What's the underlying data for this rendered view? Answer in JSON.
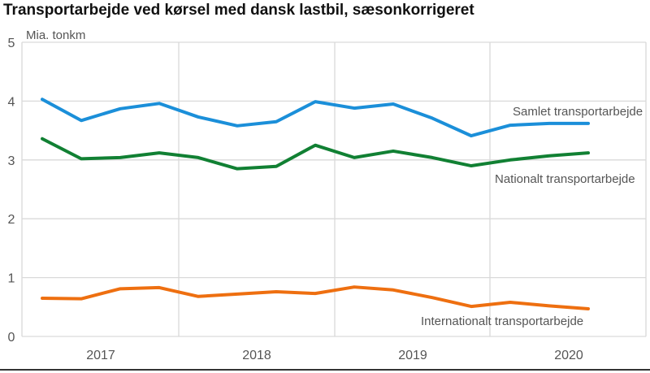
{
  "chart_data": {
    "type": "line",
    "title": "Transportarbejde ved kørsel med dansk lastbil, sæsonkorrigeret",
    "ylabel": "Mia. tonkm",
    "xlabel": "",
    "ylim": [
      0,
      5
    ],
    "yticks": [
      "0",
      "1",
      "2",
      "3",
      "4",
      "5"
    ],
    "x_year_labels": [
      "2017",
      "2018",
      "2019",
      "2020"
    ],
    "x": [
      "2017Q1",
      "2017Q2",
      "2017Q3",
      "2017Q4",
      "2018Q1",
      "2018Q2",
      "2018Q3",
      "2018Q4",
      "2019Q1",
      "2019Q2",
      "2019Q3",
      "2019Q4",
      "2020Q1",
      "2020Q2",
      "2020Q3"
    ],
    "grid": true,
    "series": [
      {
        "name": "Samlet transportarbejde",
        "color": "#1b8fd9",
        "values": [
          4.03,
          3.67,
          3.87,
          3.96,
          3.73,
          3.58,
          3.65,
          3.99,
          3.88,
          3.95,
          3.71,
          3.41,
          3.59,
          3.62,
          3.62
        ]
      },
      {
        "name": "Nationalt transportarbejde",
        "color": "#118033",
        "values": [
          3.36,
          3.02,
          3.04,
          3.12,
          3.04,
          2.85,
          2.89,
          3.25,
          3.04,
          3.15,
          3.04,
          2.9,
          3.0,
          3.07,
          3.12
        ]
      },
      {
        "name": "Internationalt transportarbejde",
        "color": "#ee6f10",
        "values": [
          0.65,
          0.64,
          0.81,
          0.83,
          0.68,
          0.72,
          0.76,
          0.73,
          0.84,
          0.79,
          0.66,
          0.51,
          0.58,
          0.52,
          0.47
        ]
      }
    ]
  }
}
